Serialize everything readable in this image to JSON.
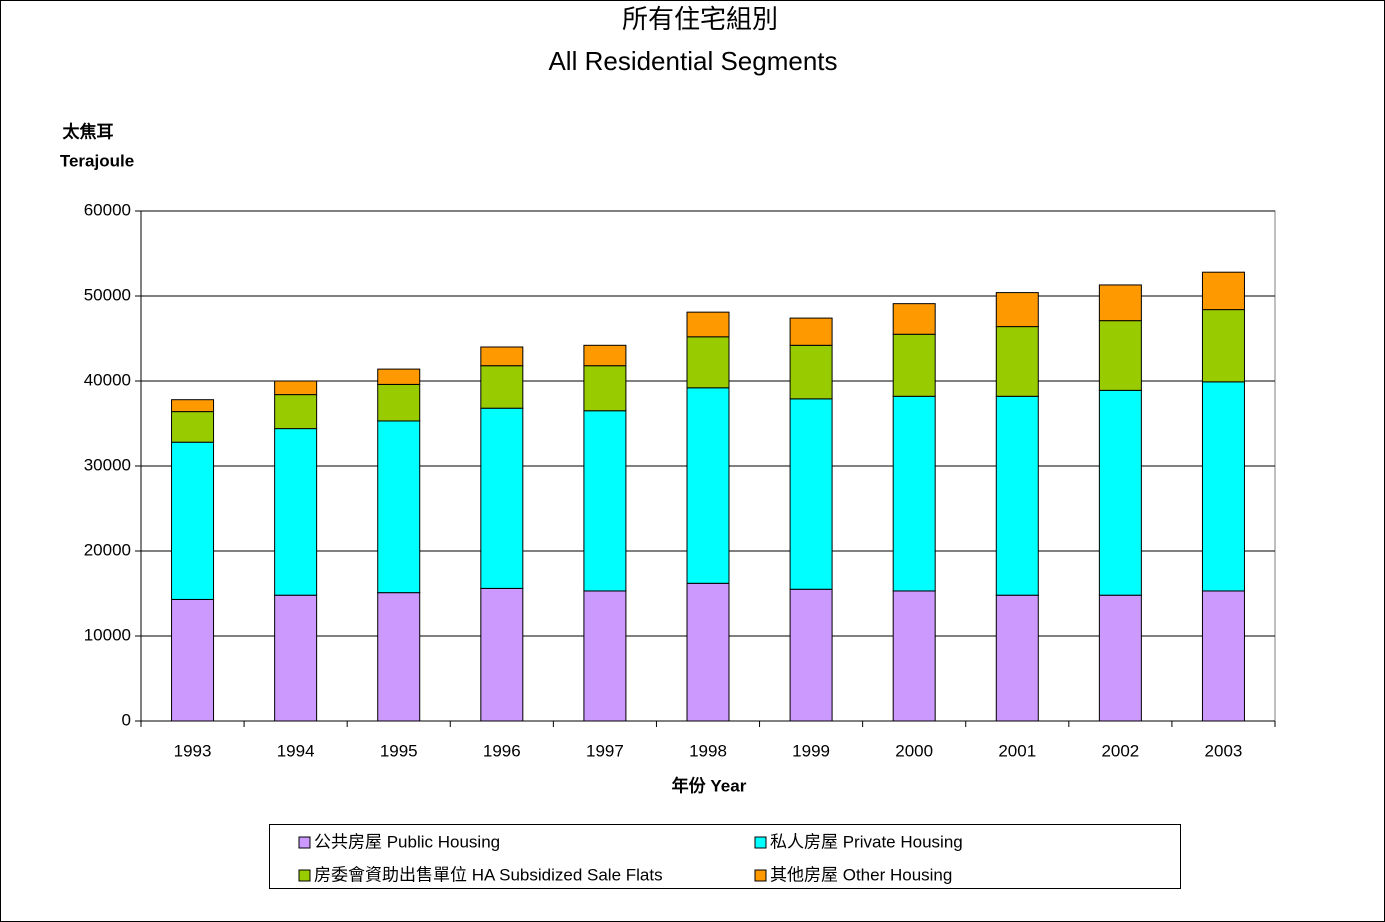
{
  "chart_data": {
    "type": "stacked_bar",
    "title": "所有住宅組別",
    "subtitle": "All Residential Segments",
    "ylabel": "太焦耳",
    "ylabel_en": "Terajoule",
    "xlabel": "年份 Year",
    "categories": [
      "1993",
      "1994",
      "1995",
      "1996",
      "1997",
      "1998",
      "1999",
      "2000",
      "2001",
      "2002",
      "2003"
    ],
    "series": [
      {
        "name": "公共房屋 Public Housing",
        "color": "#cc99ff",
        "values": [
          14300,
          14800,
          15100,
          15600,
          15300,
          16200,
          15500,
          15300,
          14800,
          14800,
          15300
        ]
      },
      {
        "name": "私人房屋 Private Housing",
        "color": "#00ffff",
        "values": [
          18500,
          19600,
          20200,
          21200,
          21200,
          23000,
          22400,
          22900,
          23400,
          24100,
          24600
        ]
      },
      {
        "name": "房委會資助出售單位 HA Subsidized Sale Flats",
        "color": "#99cc00",
        "values": [
          3600,
          4000,
          4300,
          5000,
          5300,
          6000,
          6300,
          7300,
          8200,
          8200,
          8500
        ]
      },
      {
        "name": "其他房屋 Other Housing",
        "color": "#ff9900",
        "values": [
          1400,
          1600,
          1800,
          2200,
          2400,
          2900,
          3200,
          3600,
          4000,
          4200,
          4400
        ]
      }
    ],
    "ylim": [
      0,
      60000
    ],
    "yticks": [
      0,
      10000,
      20000,
      30000,
      40000,
      50000,
      60000
    ],
    "grid": true
  }
}
